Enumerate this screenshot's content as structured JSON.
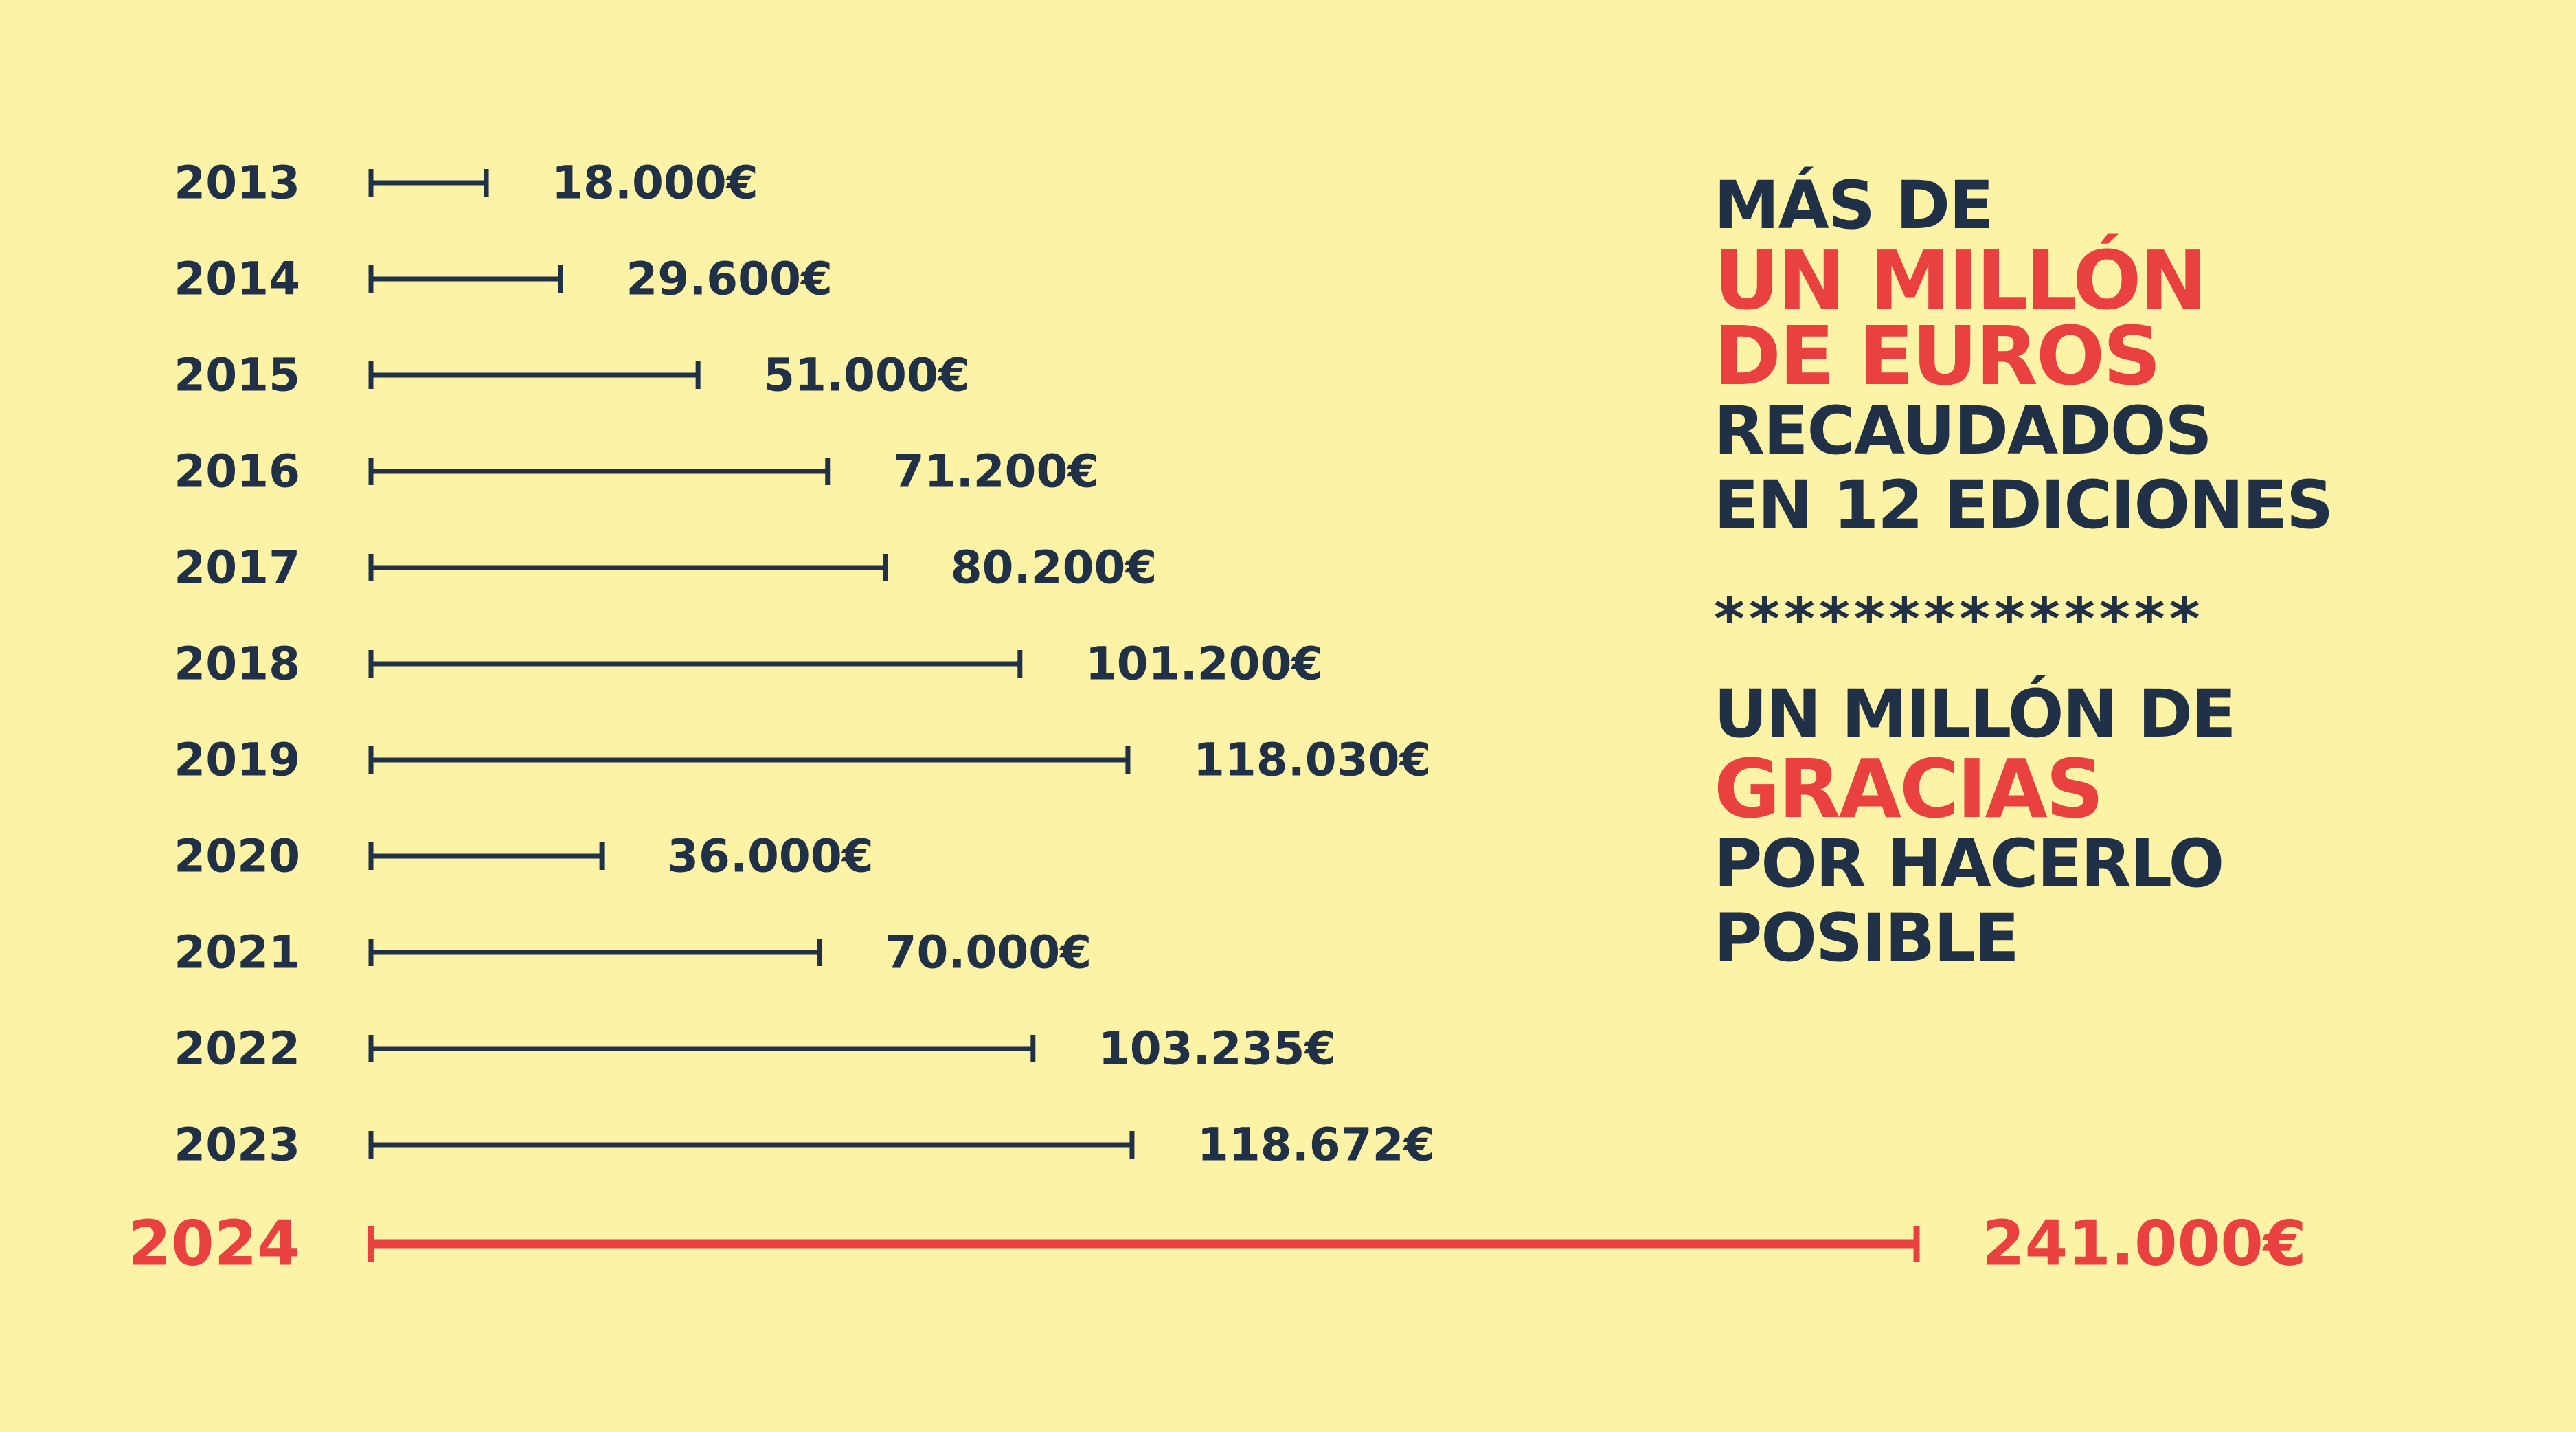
{
  "colors": {
    "background": "#fdf3a7",
    "text_dark": "#1f3047",
    "accent_red": "#e8413f"
  },
  "chart_data": {
    "type": "bar",
    "orientation": "horizontal",
    "categories": [
      "2013",
      "2014",
      "2015",
      "2016",
      "2017",
      "2018",
      "2019",
      "2020",
      "2021",
      "2022",
      "2023",
      "2024"
    ],
    "values": [
      18000,
      29600,
      51000,
      71200,
      80200,
      101200,
      118030,
      36000,
      70000,
      103235,
      118672,
      241000
    ],
    "value_labels": [
      "18.000€",
      "29.600€",
      "51.000€",
      "71.200€",
      "80.200€",
      "101.200€",
      "118.030€",
      "36.000€",
      "70.000€",
      "103.235€",
      "118.672€",
      "241.000€"
    ],
    "highlight": "2024",
    "xlim": [
      0,
      241000
    ],
    "grid": false,
    "legend": "none",
    "bar_colors": {
      "default": "#1f3047",
      "highlight": "#e8413f"
    }
  },
  "headline": {
    "line1": "MÁS DE",
    "line2": "UN MILLÓN",
    "line3": "DE EUROS",
    "line4": "RECAUDADOS",
    "line5": "EN 12 EDICIONES",
    "divider": "**************",
    "line6": "UN MILLÓN DE",
    "line7": "GRACIAS",
    "line8": "POR HACERLO",
    "line9": "POSIBLE"
  }
}
